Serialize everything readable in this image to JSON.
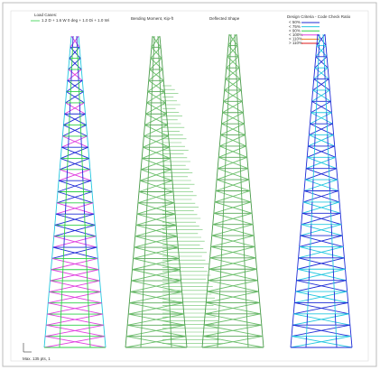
{
  "header": {
    "load_cases_title": "Load Cases:",
    "load_case": "1.2 D + 1.6 W 0 deg + 1.0 Di + 1.0 Wi",
    "moment_title": "Bending Moment, Kip-ft",
    "deflection_title": "Deflected Shape",
    "code_check_title": "Design Criteria - Code Check Ratio"
  },
  "legend": [
    {
      "label": "< 50%",
      "color": "#1e2bd6"
    },
    {
      "label": "< 75%",
      "color": "#24c8e0"
    },
    {
      "label": "< 90%",
      "color": "#2fcf4a"
    },
    {
      "label": "< 100%",
      "color": "#e040e0"
    },
    {
      "label": "< 110%",
      "color": "#f08020"
    },
    {
      "label": "> 110%",
      "color": "#e01818"
    }
  ],
  "footer": {
    "scale": "Max. 135 pts, 1"
  }
}
